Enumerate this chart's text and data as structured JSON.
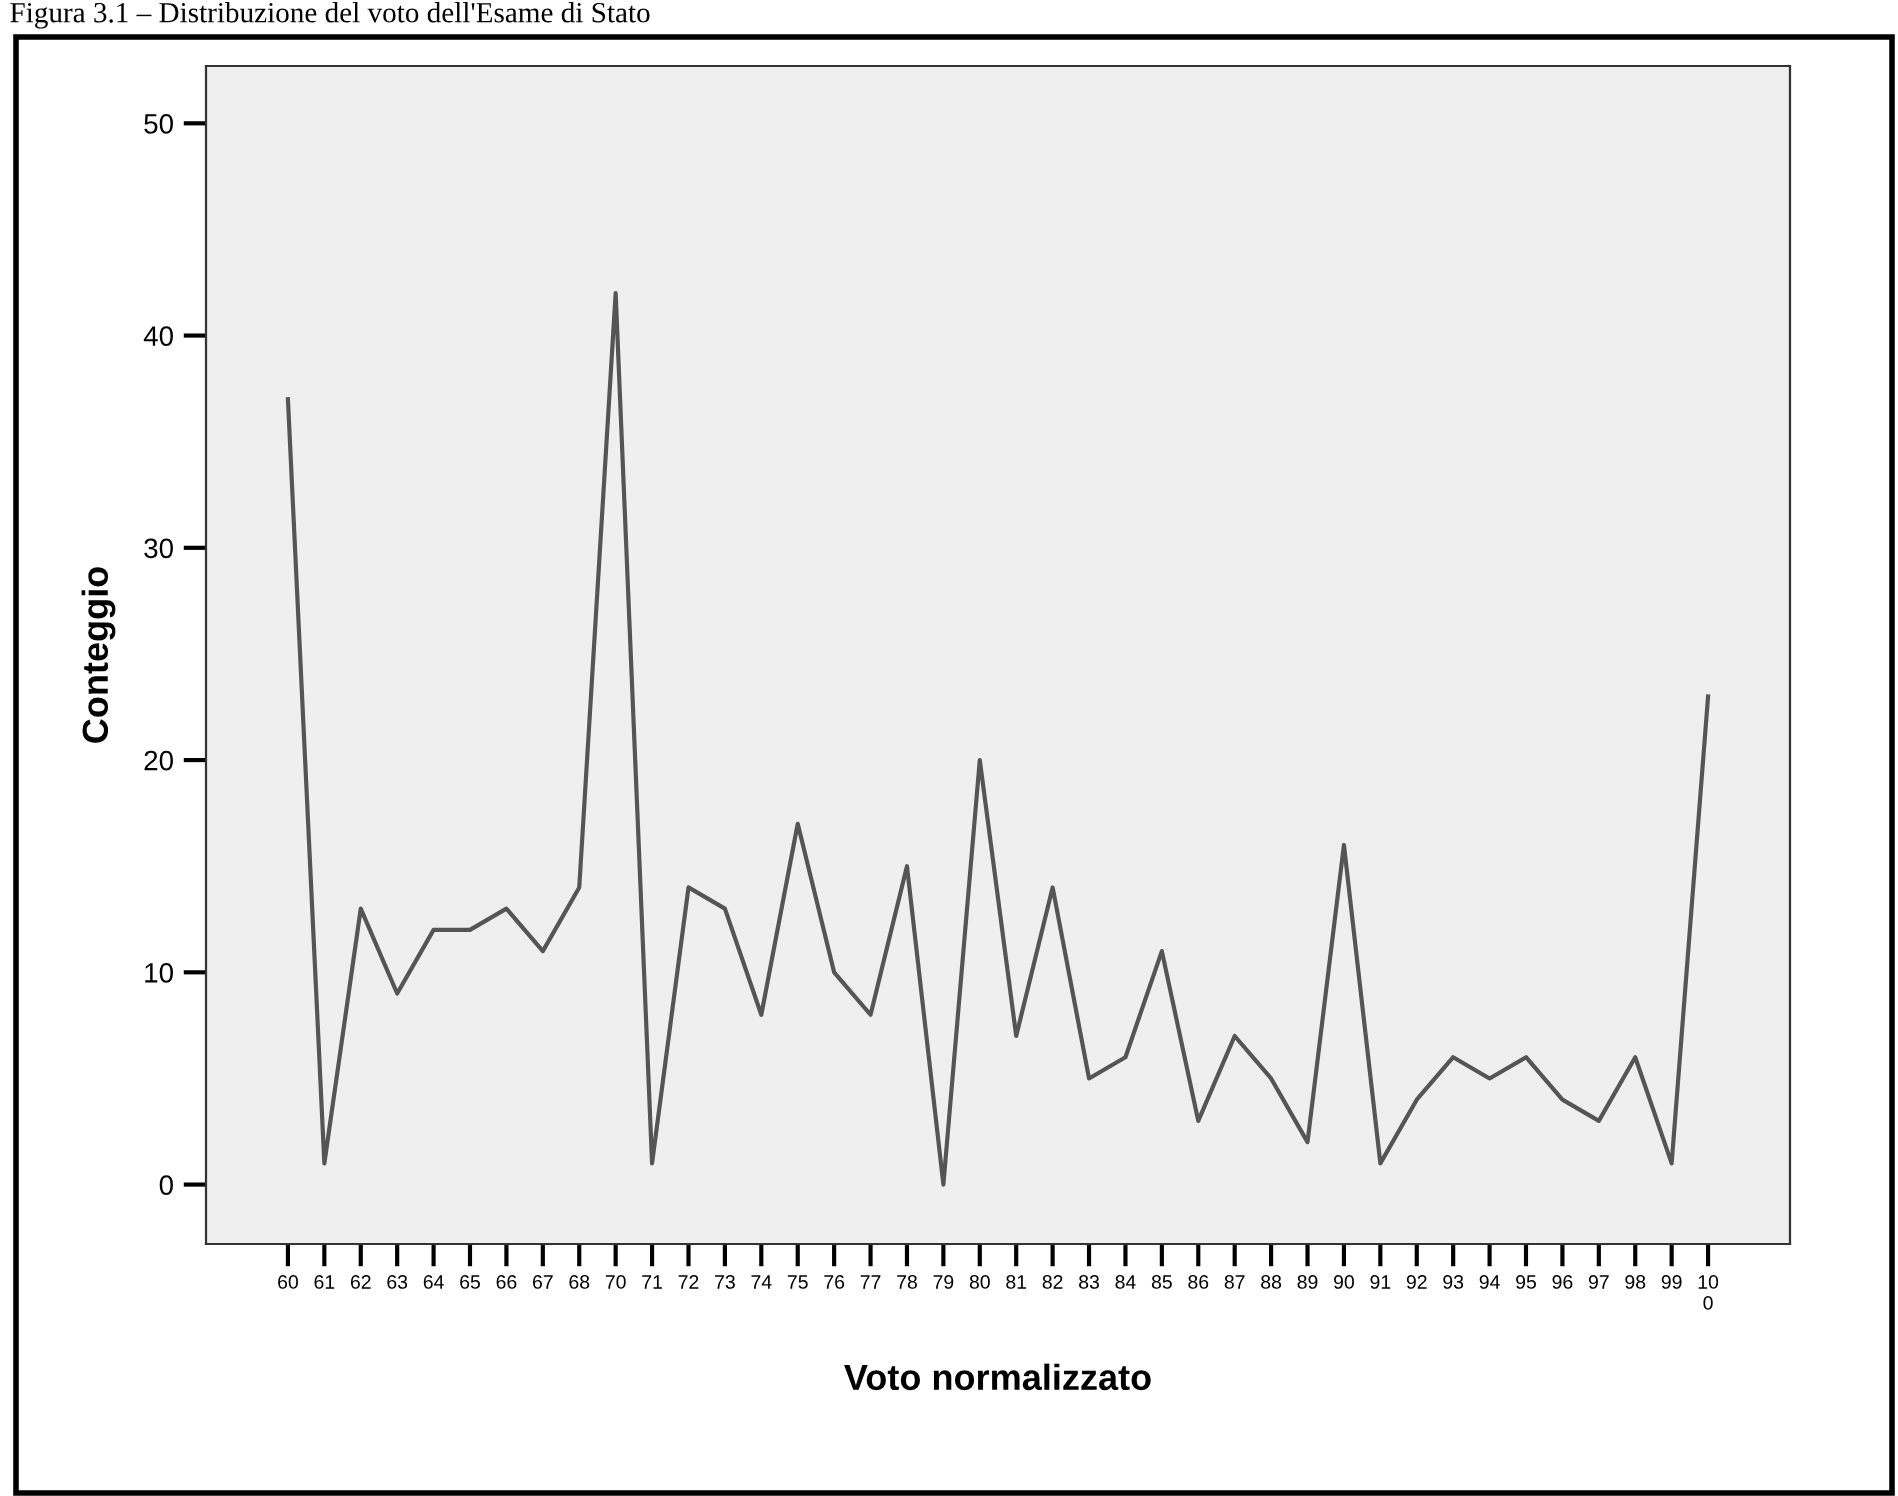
{
  "chart_data": {
    "type": "line",
    "title": "Figura 3.1 – Distribuzione del voto dell'Esame di Stato",
    "xlabel": "Voto normalizzato",
    "ylabel": "Conteggio",
    "categories": [
      "60",
      "61",
      "62",
      "63",
      "64",
      "65",
      "66",
      "67",
      "68",
      "70",
      "71",
      "72",
      "73",
      "74",
      "75",
      "76",
      "77",
      "78",
      "79",
      "80",
      "81",
      "82",
      "83",
      "84",
      "85",
      "86",
      "87",
      "88",
      "89",
      "90",
      "91",
      "92",
      "93",
      "94",
      "95",
      "96",
      "97",
      "98",
      "99",
      "10\n0"
    ],
    "series": [
      {
        "color": "#555555",
        "values": [
          37,
          1,
          13,
          9,
          12,
          12,
          13,
          11,
          14,
          42,
          1,
          14,
          13,
          8,
          17,
          10,
          8,
          15,
          0,
          20,
          7,
          14,
          5,
          6,
          11,
          3,
          7,
          5,
          2,
          16,
          1,
          4,
          6,
          5,
          6,
          4,
          3,
          6,
          1,
          23
        ]
      }
    ],
    "ylim": [
      -2.8,
      52.7
    ],
    "yticks": [
      0,
      10,
      20,
      30,
      40,
      50
    ],
    "grid": false,
    "legend": false,
    "marker": "none",
    "line_style": "solid"
  }
}
